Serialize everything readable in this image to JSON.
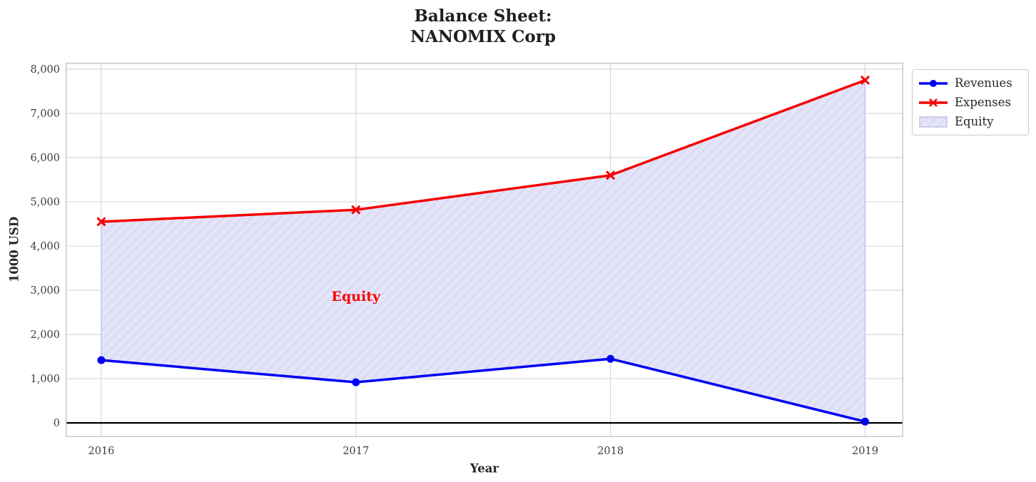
{
  "chart_data": {
    "type": "line",
    "title": "Balance Sheet:\nNANOMIX Corp",
    "xlabel": "Year",
    "ylabel": "1000 USD",
    "x": [
      2016,
      2017,
      2018,
      2019
    ],
    "series": [
      {
        "name": "Revenues",
        "values": [
          1420,
          920,
          1450,
          30
        ],
        "color": "#0000f5",
        "marker": "circle",
        "linewidth": 3.5
      },
      {
        "name": "Expenses",
        "values": [
          4550,
          4820,
          5600,
          7750
        ],
        "color": "#f50000",
        "marker": "x",
        "linewidth": 3.5
      }
    ],
    "fill_between": {
      "label": "Equity",
      "lower_series": "Revenues",
      "upper_series": "Expenses",
      "facecolor": "#e4e4f8",
      "hatch": "/",
      "hatch_color": "#c3c3ee",
      "edge_color": "#b9b9ea"
    },
    "annotation": {
      "text": "Equity",
      "x": 2017,
      "y": 2870,
      "color": "#fa0000"
    },
    "xlim": [
      2015.86,
      2019.15
    ],
    "ylim": [
      -320,
      8145
    ],
    "xticks": {
      "values": [
        2016,
        2017,
        2018,
        2019
      ],
      "labels": [
        "2016",
        "2017",
        "2018",
        "2019"
      ]
    },
    "yticks": {
      "values": [
        0,
        1000,
        2000,
        3000,
        4000,
        5000,
        6000,
        7000,
        8000
      ],
      "labels": [
        "0",
        "1,000",
        "2,000",
        "3,000",
        "4,000",
        "5,000",
        "6,000",
        "7,000",
        "8,000"
      ]
    },
    "grid": true,
    "zero_line": true,
    "legend": {
      "position": "outside-upper-right",
      "items": [
        {
          "label": "Revenues",
          "handle": "line-circle",
          "color": "#0000f5"
        },
        {
          "label": "Expenses",
          "handle": "line-x",
          "color": "#f50000"
        },
        {
          "label": "Equity",
          "handle": "hatched-patch",
          "color": "#e4e4f8"
        }
      ]
    }
  }
}
